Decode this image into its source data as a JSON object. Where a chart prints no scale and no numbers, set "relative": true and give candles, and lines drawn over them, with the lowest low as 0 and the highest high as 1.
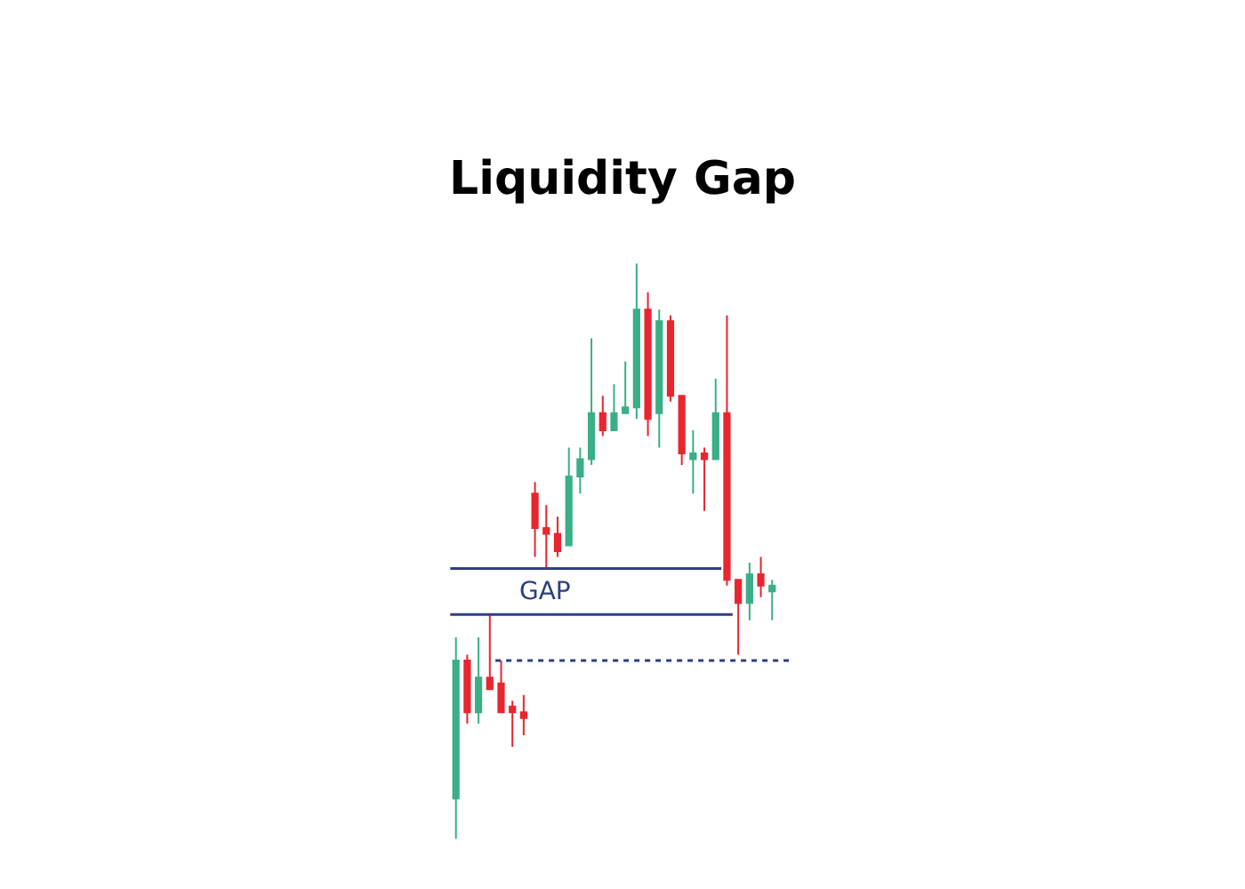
{
  "chart_data": {
    "type": "candlestick",
    "title": "Liquidity Gap",
    "relative": true,
    "legend": false,
    "categories": [
      null,
      null,
      null,
      null,
      null,
      null,
      null,
      null,
      null,
      null,
      null,
      null,
      null,
      null,
      null,
      null,
      null,
      null,
      null,
      null,
      null,
      null,
      null,
      null,
      null,
      null,
      null,
      null,
      null
    ],
    "ohlc": [
      [
        0.07,
        0.35,
        0,
        0.31
      ],
      [
        0.31,
        0.32,
        0.2,
        0.22
      ],
      [
        0.22,
        0.35,
        0.2,
        0.28
      ],
      [
        0.28,
        0.39,
        0.26,
        0.26
      ],
      [
        0.27,
        0.31,
        0.22,
        0.22
      ],
      [
        0.23,
        0.24,
        0.16,
        0.22
      ],
      [
        0.22,
        0.25,
        0.18,
        0.21
      ],
      [
        0.6,
        0.62,
        0.49,
        0.54
      ],
      [
        0.54,
        0.58,
        0.47,
        0.53
      ],
      [
        0.53,
        0.56,
        0.49,
        0.5
      ],
      [
        0.51,
        0.68,
        0.51,
        0.63
      ],
      [
        0.63,
        0.68,
        0.6,
        0.66
      ],
      [
        0.66,
        0.87,
        0.65,
        0.74
      ],
      [
        0.74,
        0.77,
        0.7,
        0.71
      ],
      [
        0.71,
        0.79,
        0.71,
        0.74
      ],
      [
        0.74,
        0.83,
        0.74,
        0.75
      ],
      [
        0.75,
        1.0,
        0.73,
        0.92
      ],
      [
        0.92,
        0.95,
        0.7,
        0.73
      ],
      [
        0.74,
        0.92,
        0.68,
        0.9
      ],
      [
        0.9,
        0.91,
        0.76,
        0.77
      ],
      [
        0.77,
        0.77,
        0.65,
        0.67
      ],
      [
        0.66,
        0.71,
        0.6,
        0.67
      ],
      [
        0.67,
        0.68,
        0.57,
        0.66
      ],
      [
        0.66,
        0.8,
        0.66,
        0.74
      ],
      [
        0.74,
        0.91,
        0.44,
        0.45
      ],
      [
        0.45,
        0.45,
        0.32,
        0.41
      ],
      [
        0.41,
        0.48,
        0.38,
        0.46
      ],
      [
        0.46,
        0.49,
        0.42,
        0.44
      ],
      [
        0.43,
        0.45,
        0.38,
        0.44
      ]
    ],
    "annotations": [
      "GAP"
    ],
    "ref_lines": [
      {
        "axis": "y",
        "value": 0.47,
        "color": "#2e3f7f",
        "line_style": "solid"
      },
      {
        "axis": "y",
        "value": 0.39,
        "color": "#2e3f7f",
        "line_style": "solid"
      },
      {
        "axis": "y",
        "value": 0.31,
        "color": "#2e3f7f",
        "line_style": "dotted"
      }
    ]
  }
}
